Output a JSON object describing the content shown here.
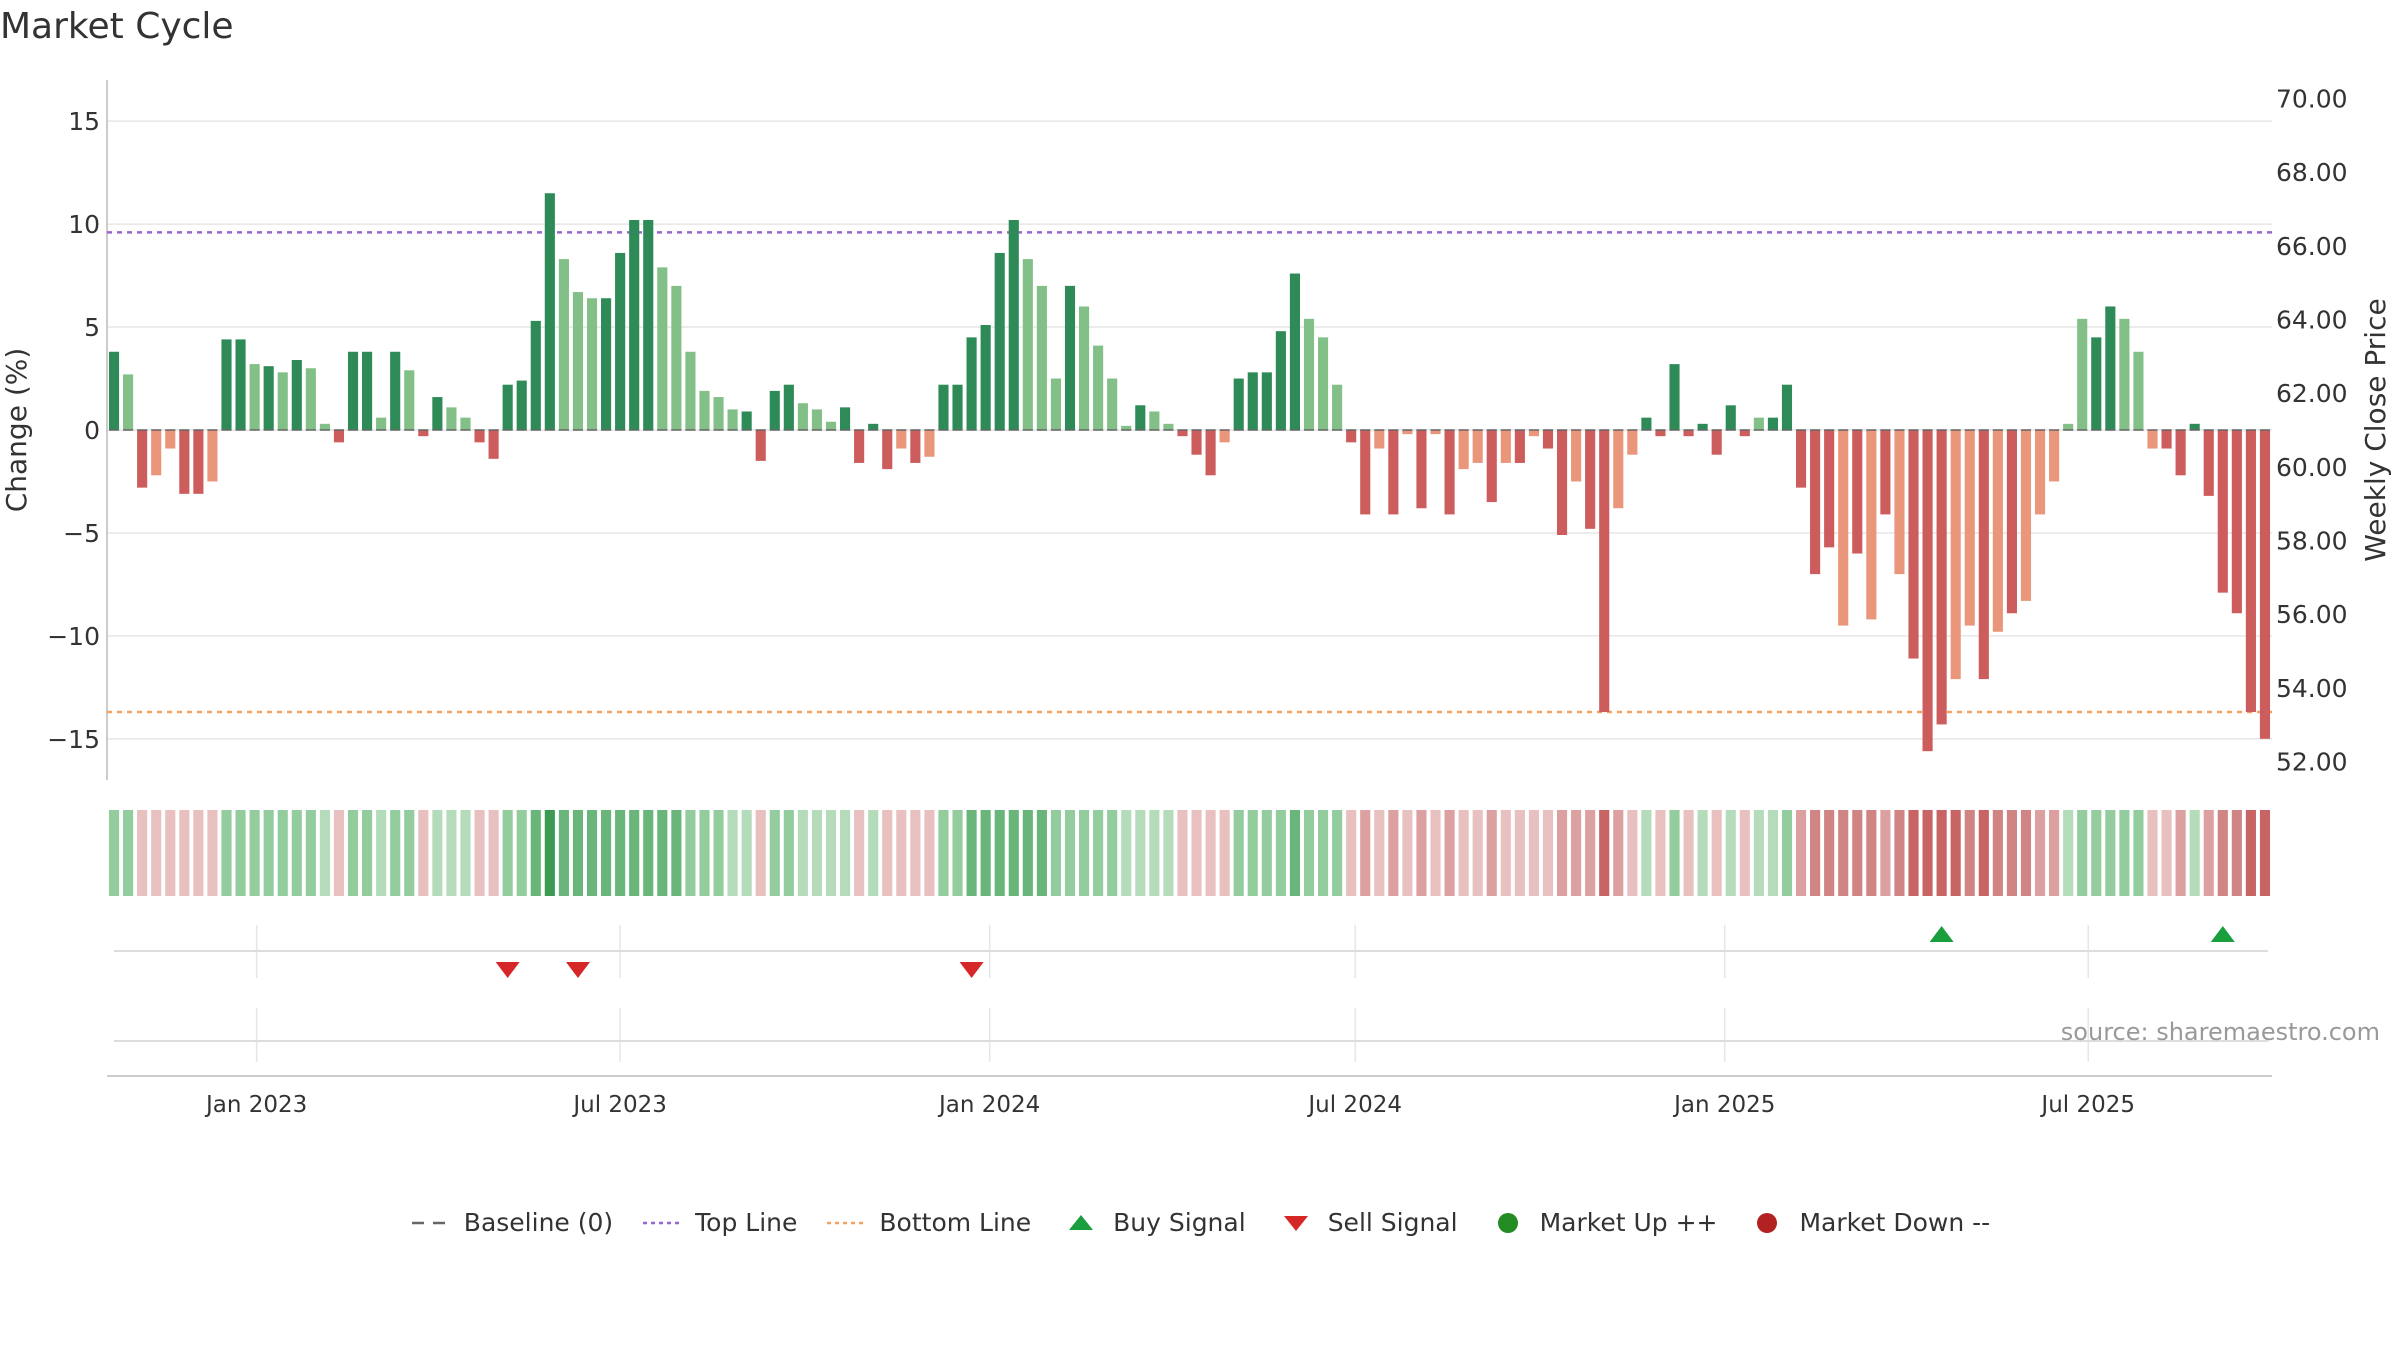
{
  "colors": {
    "up_strong": "#2e8b57",
    "up_weak": "#82c088",
    "down_strong": "#cd5c5c",
    "down_weak": "#e9967a",
    "top_line": "#9966cc",
    "bottom_line": "#f4a460",
    "baseline": "#666666",
    "buy": "#1a9e3e",
    "sell": "#d62728",
    "market_up": "#228b22",
    "market_down": "#b22222",
    "grid": "#e6e6e6",
    "axis_text": "#333333"
  },
  "source_text": "source: sharemaestro.com",
  "legend": [
    {
      "key": "baseline",
      "label": "Baseline (0)",
      "symbol": "dash"
    },
    {
      "key": "top_line",
      "label": "Top Line",
      "symbol": "dot-purple"
    },
    {
      "key": "bottom_line",
      "label": "Bottom Line",
      "symbol": "dot-orange"
    },
    {
      "key": "buy",
      "label": "Buy Signal",
      "symbol": "triangle-up"
    },
    {
      "key": "sell",
      "label": "Sell Signal",
      "symbol": "triangle-down"
    },
    {
      "key": "market_up",
      "label": "Market Up ++",
      "symbol": "dot-green"
    },
    {
      "key": "market_down",
      "label": "Market Down --",
      "symbol": "dot-red"
    }
  ],
  "chart_data": {
    "type": "bar",
    "title": "Market Cycle",
    "ylabel": "Change (%)",
    "y2label": "Weekly Close Price",
    "ylim": [
      -17,
      17
    ],
    "y2lim": [
      51.5,
      70.5
    ],
    "yticks": [
      15,
      10,
      5,
      0,
      -5,
      -10,
      -15
    ],
    "ytick_labels": [
      "15",
      "10",
      "5",
      "0",
      "−5",
      "−10",
      "−15"
    ],
    "y2ticks": [
      70,
      68,
      66,
      64,
      62,
      60,
      58,
      56,
      54,
      52
    ],
    "y2tick_labels": [
      "70.00",
      "68.00",
      "66.00",
      "64.00",
      "62.00",
      "60.00",
      "58.00",
      "56.00",
      "54.00",
      "52.00"
    ],
    "xticks": [
      {
        "label": "Jan 2023",
        "date": "2023-01-01"
      },
      {
        "label": "Jul 2023",
        "date": "2023-07-01"
      },
      {
        "label": "Jan 2024",
        "date": "2024-01-01"
      },
      {
        "label": "Jul 2024",
        "date": "2024-07-01"
      },
      {
        "label": "Jan 2025",
        "date": "2025-01-01"
      },
      {
        "label": "Jul 2025",
        "date": "2025-07-01"
      }
    ],
    "first_week": "2022-10-22",
    "week_step_days": 7,
    "top_line": 9.6,
    "bottom_line": -13.7,
    "baseline": 0,
    "values": [
      3.8,
      2.7,
      -2.8,
      -2.2,
      -0.9,
      -3.1,
      -3.1,
      -2.5,
      4.4,
      4.4,
      3.2,
      3.1,
      2.8,
      3.4,
      3.0,
      0.3,
      -0.6,
      3.8,
      3.8,
      0.6,
      3.8,
      2.9,
      -0.3,
      1.6,
      1.1,
      0.6,
      -0.6,
      -1.4,
      2.2,
      2.4,
      5.3,
      11.5,
      8.3,
      6.7,
      6.4,
      6.4,
      8.6,
      10.2,
      10.2,
      7.9,
      7.0,
      3.8,
      1.9,
      1.6,
      1.0,
      0.9,
      -1.5,
      1.9,
      2.2,
      1.3,
      1.0,
      0.4,
      1.1,
      -1.6,
      0.3,
      -1.9,
      -0.9,
      -1.6,
      -1.3,
      2.2,
      2.2,
      4.5,
      5.1,
      8.6,
      10.2,
      8.3,
      7.0,
      2.5,
      7.0,
      6.0,
      4.1,
      2.5,
      0.2,
      1.2,
      0.9,
      0.3,
      -0.3,
      -1.2,
      -2.2,
      -0.6,
      2.5,
      2.8,
      2.8,
      4.8,
      7.6,
      5.4,
      4.5,
      2.2,
      -0.6,
      -4.1,
      -0.9,
      -4.1,
      -0.2,
      -3.8,
      -0.2,
      -4.1,
      -1.9,
      -1.6,
      -3.5,
      -1.6,
      -1.6,
      -0.3,
      -0.9,
      -5.1,
      -2.5,
      -4.8,
      -13.7,
      -3.8,
      -1.2,
      0.6,
      -0.3,
      3.2,
      -0.3,
      0.3,
      -1.2,
      1.2,
      -0.3,
      0.6,
      0.6,
      2.2,
      -2.8,
      -7.0,
      -5.7,
      -9.5,
      -6.0,
      -9.2,
      -4.1,
      -7.0,
      -11.1,
      -15.6,
      -14.3,
      -12.1,
      -9.5,
      -12.1,
      -9.8,
      -8.9,
      -8.3,
      -4.1,
      -2.5,
      0.3,
      5.4,
      4.5,
      6.0,
      5.4,
      3.8,
      -0.9,
      -0.9,
      -2.2,
      0.3,
      -3.2,
      -7.9,
      -8.9,
      -13.7,
      -15.0
    ],
    "strength": [
      1,
      0,
      1,
      0,
      0,
      1,
      1,
      0,
      1,
      1,
      0,
      1,
      0,
      1,
      0,
      0,
      1,
      1,
      1,
      0,
      1,
      0,
      1,
      1,
      0,
      0,
      1,
      1,
      1,
      1,
      1,
      1,
      0,
      0,
      0,
      1,
      1,
      1,
      1,
      0,
      0,
      0,
      0,
      0,
      0,
      1,
      1,
      1,
      1,
      0,
      0,
      0,
      1,
      1,
      1,
      1,
      0,
      1,
      0,
      1,
      1,
      1,
      1,
      1,
      1,
      0,
      0,
      0,
      1,
      0,
      0,
      0,
      0,
      1,
      0,
      0,
      1,
      1,
      1,
      0,
      1,
      1,
      1,
      1,
      1,
      0,
      0,
      0,
      1,
      1,
      0,
      1,
      0,
      1,
      0,
      1,
      0,
      0,
      1,
      0,
      1,
      0,
      1,
      1,
      0,
      1,
      1,
      0,
      0,
      1,
      1,
      1,
      1,
      1,
      1,
      1,
      1,
      0,
      1,
      1,
      1,
      1,
      1,
      0,
      1,
      0,
      1,
      0,
      1,
      1,
      1,
      0,
      0,
      1,
      0,
      1,
      0,
      0,
      0,
      0,
      0,
      1,
      1,
      0,
      0,
      0,
      1,
      1,
      1,
      1,
      1,
      1,
      1,
      1,
      1,
      1,
      1
    ],
    "heat": [
      2,
      2,
      1,
      1,
      1,
      1,
      1,
      1,
      2,
      2,
      2,
      2,
      2,
      2,
      2,
      1,
      1,
      2,
      2,
      1,
      2,
      2,
      1,
      1,
      1,
      1,
      1,
      1,
      2,
      2,
      3,
      4,
      3,
      3,
      3,
      3,
      3,
      3,
      3,
      3,
      3,
      2,
      2,
      2,
      1,
      1,
      1,
      2,
      2,
      1,
      1,
      1,
      1,
      1,
      1,
      1,
      1,
      1,
      1,
      2,
      2,
      3,
      3,
      3,
      3,
      3,
      3,
      2,
      2,
      2,
      2,
      2,
      1,
      1,
      1,
      1,
      1,
      1,
      1,
      1,
      2,
      2,
      2,
      2,
      3,
      2,
      2,
      2,
      1,
      2,
      1,
      2,
      1,
      2,
      1,
      2,
      1,
      1,
      2,
      1,
      1,
      1,
      1,
      2,
      2,
      2,
      4,
      2,
      1,
      1,
      1,
      2,
      1,
      1,
      1,
      1,
      1,
      1,
      1,
      2,
      2,
      3,
      3,
      3,
      3,
      3,
      2,
      3,
      4,
      4,
      4,
      4,
      3,
      4,
      3,
      3,
      3,
      2,
      2,
      1,
      2,
      2,
      2,
      2,
      2,
      1,
      1,
      2,
      1,
      2,
      3,
      3,
      4,
      4
    ],
    "sell_signals": [
      "2023-05-06",
      "2023-06-10",
      "2023-12-23"
    ],
    "buy_signals": [
      "2025-04-19",
      "2025-09-06"
    ]
  }
}
